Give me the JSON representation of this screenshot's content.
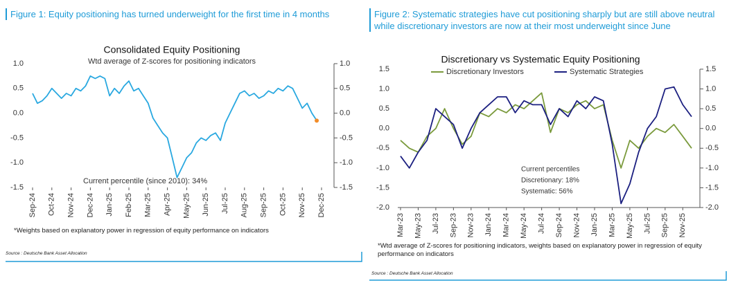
{
  "chart_data": [
    {
      "type": "line",
      "caption": "Figure 1: Equity positioning has turned underweight for the first time in 4 months",
      "title": "Consolidated Equity Positioning",
      "subtitle": "Wtd average of Z-scores for positioning indicators",
      "annotation": "Current percentile (since 2010): 34%",
      "footnote": "*Weights based on explanatory power in regression of equity performance on indicators",
      "source": "Source : Deutsche Bank Asset Allocation",
      "categories": [
        "Sep-24",
        null,
        null,
        null,
        "Oct-24",
        null,
        null,
        null,
        "Nov-24",
        null,
        null,
        null,
        "Dec-24",
        null,
        null,
        null,
        "Jan-25",
        null,
        null,
        null,
        "Feb-25",
        null,
        null,
        null,
        "Mar-25",
        null,
        null,
        null,
        "Apr-25",
        null,
        null,
        null,
        "May-25",
        null,
        null,
        null,
        "Jun-25",
        null,
        null,
        null,
        "Jul-25",
        null,
        null,
        null,
        "Aug-25",
        null,
        null,
        null,
        "Sep-25",
        null,
        null,
        null,
        "Oct-25",
        null,
        null,
        null,
        "Nov-25",
        null,
        null,
        null,
        "Dec-25"
      ],
      "values": [
        0.4,
        0.2,
        0.25,
        0.35,
        0.5,
        0.4,
        0.3,
        0.4,
        0.35,
        0.5,
        0.45,
        0.55,
        0.75,
        0.7,
        0.75,
        0.7,
        0.35,
        0.5,
        0.4,
        0.55,
        0.65,
        0.45,
        0.5,
        0.35,
        0.2,
        -0.1,
        -0.25,
        -0.4,
        -0.5,
        -0.9,
        -1.3,
        -1.1,
        -0.9,
        -0.8,
        -0.6,
        -0.5,
        -0.55,
        -0.45,
        -0.4,
        -0.55,
        -0.2,
        0.0,
        0.2,
        0.4,
        0.45,
        0.35,
        0.4,
        0.3,
        0.35,
        0.45,
        0.4,
        0.5,
        0.45,
        0.55,
        0.5,
        0.3,
        0.1,
        0.2,
        0.0,
        -0.15,
        null
      ],
      "color": "#29a8e0",
      "last_point_color": "#f28c28",
      "ylim": [
        -1.5,
        1.0
      ],
      "yticks": [
        {
          "value": 1.0,
          "label": "1.0"
        },
        0.5,
        {
          "value": 0.0,
          "label": "0.0"
        },
        -0.5,
        {
          "value": -1.0,
          "label": "-1.0"
        },
        -1.5
      ],
      "y2lim": [
        -1.5,
        1.0
      ],
      "y2ticks": [
        {
          "value": 1.0,
          "label": "1.0"
        },
        0.5,
        {
          "value": 0.0,
          "label": "0.0"
        },
        -0.5,
        {
          "value": -1.0,
          "label": "-1.0"
        },
        -1.5
      ]
    },
    {
      "type": "line",
      "caption": "Figure 2: Systematic strategies have cut positioning sharply but are still above neutral while discretionary investors are now at their most underweight since June",
      "title": "Discretionary  vs Systematic Equity Positioning",
      "annotation": [
        "Current percentiles",
        "Discretionary: 18%",
        "Systematic: 56%"
      ],
      "footnote": "*Wtd average of Z-scores for positioning indicators, weights based on explanatory power in regression of equity performance on indicators",
      "source": "Source : Deutsche Bank Asset Allocation",
      "categories": [
        "Mar-23",
        null,
        "May-23",
        null,
        "Jul-23",
        null,
        "Sep-23",
        null,
        "Nov-23",
        null,
        "Jan-24",
        null,
        "Mar-24",
        null,
        "May-24",
        null,
        "Jul-24",
        null,
        "Sep-24",
        null,
        "Nov-24",
        null,
        "Jan-25",
        null,
        "Mar-25",
        null,
        "May-25",
        null,
        "Jul-25",
        null,
        "Sep-25",
        null,
        "Nov-25",
        null
      ],
      "series": [
        {
          "name": "Discretionary Investors",
          "color": "#7a9a3c",
          "values": [
            -0.3,
            -0.5,
            -0.6,
            -0.2,
            0.0,
            0.5,
            0.0,
            -0.4,
            -0.2,
            0.4,
            0.3,
            0.5,
            0.4,
            0.6,
            0.5,
            0.7,
            0.9,
            -0.1,
            0.5,
            0.4,
            0.6,
            0.7,
            0.5,
            0.6,
            -0.3,
            -1.0,
            -0.3,
            -0.5,
            -0.2,
            0.0,
            -0.1,
            0.1,
            -0.2,
            -0.5
          ]
        },
        {
          "name": "Systematic Strategies",
          "color": "#1b1f80",
          "values": [
            -0.7,
            -1.0,
            -0.6,
            -0.3,
            0.5,
            0.3,
            0.1,
            -0.5,
            0.0,
            0.4,
            0.6,
            0.8,
            0.8,
            0.4,
            0.7,
            0.6,
            0.6,
            0.1,
            0.5,
            0.3,
            0.7,
            0.5,
            0.8,
            0.7,
            -0.4,
            -1.9,
            -1.4,
            -0.6,
            0.0,
            0.3,
            1.0,
            1.05,
            0.6,
            0.3
          ]
        }
      ],
      "legend": "top",
      "ylim": [
        -2.0,
        1.5
      ],
      "yticks": [
        1.5,
        {
          "value": 1.0,
          "label": "1.0"
        },
        0.5,
        {
          "value": 0.0,
          "label": "0.0"
        },
        -0.5,
        {
          "value": -1.0,
          "label": "-1.0"
        },
        -1.5,
        {
          "value": -2.0,
          "label": "-2.0"
        }
      ],
      "y2lim": [
        -2.0,
        1.5
      ],
      "y2ticks": [
        1.5,
        {
          "value": 1.0,
          "label": "1.0"
        },
        0.5,
        {
          "value": 0.0,
          "label": "0.0"
        },
        -0.5,
        {
          "value": -1.0,
          "label": "-1.0"
        },
        -1.5,
        {
          "value": -2.0,
          "label": "-2.0"
        }
      ]
    }
  ]
}
